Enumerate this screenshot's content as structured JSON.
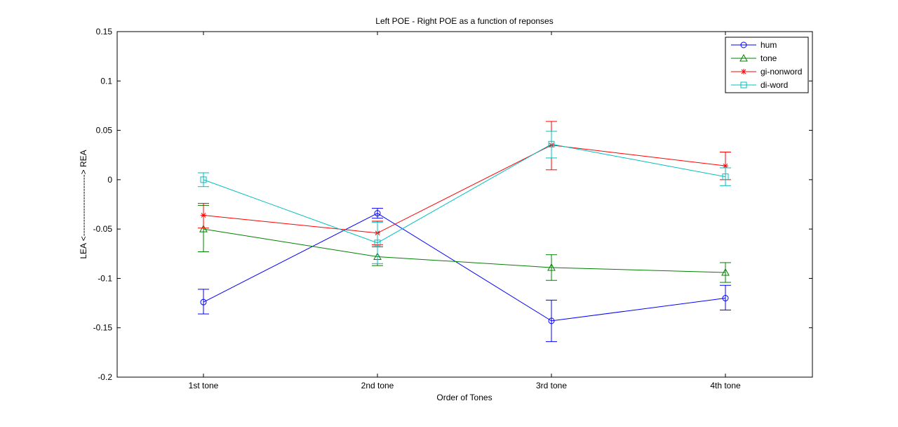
{
  "chart_data": {
    "type": "line",
    "title": "Left POE - Right POE as a function of reponses",
    "xlabel": "Order of Tones",
    "ylabel": "LEA <----------------------> REA",
    "categories": [
      "1st tone",
      "2nd tone",
      "3rd tone",
      "4th tone"
    ],
    "ylim": [
      -0.2,
      0.15
    ],
    "yticks": [
      -0.2,
      -0.15,
      -0.1,
      -0.05,
      0,
      0.05,
      0.1,
      0.15
    ],
    "ytick_labels": [
      "-0.2",
      "-0.15",
      "-0.1",
      "-0.05",
      "0",
      "0.05",
      "0.1",
      "0.15"
    ],
    "grid": false,
    "legend_position": "top-right",
    "series": [
      {
        "name": "hum",
        "color": "#0000ff",
        "marker": "circle",
        "values": [
          -0.124,
          -0.034,
          -0.143,
          -0.12
        ],
        "err_low": [
          -0.136,
          -0.039,
          -0.164,
          -0.132
        ],
        "err_high": [
          -0.111,
          -0.029,
          -0.122,
          -0.107
        ]
      },
      {
        "name": "tone",
        "color": "#008000",
        "marker": "triangle",
        "values": [
          -0.05,
          -0.078,
          -0.089,
          -0.094
        ],
        "err_low": [
          -0.073,
          -0.087,
          -0.102,
          -0.104
        ],
        "err_high": [
          -0.026,
          -0.068,
          -0.076,
          -0.084
        ]
      },
      {
        "name": "gi-nonword",
        "color": "#ff0000",
        "marker": "asterisk",
        "values": [
          -0.036,
          -0.054,
          0.035,
          0.014
        ],
        "err_low": [
          -0.049,
          -0.066,
          0.01,
          0.0
        ],
        "err_high": [
          -0.024,
          -0.042,
          0.059,
          0.028
        ]
      },
      {
        "name": "di-word",
        "color": "#00bfbf",
        "marker": "square",
        "values": [
          0.0,
          -0.064,
          0.036,
          0.003
        ],
        "err_low": [
          -0.007,
          -0.085,
          0.022,
          -0.006
        ],
        "err_high": [
          0.007,
          -0.043,
          0.049,
          0.012
        ]
      }
    ]
  }
}
